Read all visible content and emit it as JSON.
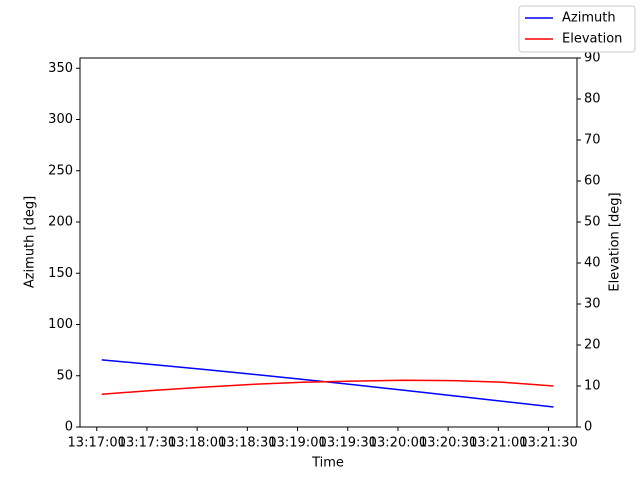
{
  "chart_data": {
    "type": "line",
    "x_label": "Time",
    "y_label": "Azimuth [deg]",
    "y2_label": "Elevation [deg]",
    "x": [
      "13:17:03",
      "13:17:33",
      "13:18:03",
      "13:18:33",
      "13:19:03",
      "13:19:33",
      "13:20:03",
      "13:20:33",
      "13:21:03",
      "13:21:33"
    ],
    "series": [
      {
        "name": "Azimuth",
        "color": "#0000ff",
        "values": [
          65.5,
          61,
          56.3,
          51.5,
          46.5,
          41.3,
          36,
          30.5,
          25,
          19.5
        ]
      },
      {
        "name": "Elevation",
        "color": "#ff0000",
        "axis": "y2",
        "values": [
          8.0,
          8.9,
          9.7,
          10.4,
          10.9,
          11.2,
          11.4,
          11.3,
          10.9,
          10.0
        ]
      }
    ],
    "xlim": [
      "13:16:50",
      "13:21:47"
    ],
    "xticks": [
      "13:17:00",
      "13:17:30",
      "13:18:00",
      "13:18:30",
      "13:19:00",
      "13:19:30",
      "13:20:00",
      "13:20:30",
      "13:21:00",
      "13:21:30"
    ],
    "ylim": [
      0,
      360
    ],
    "yticks": [
      0,
      50,
      100,
      150,
      200,
      250,
      300,
      350
    ],
    "y2lim": [
      0,
      90
    ],
    "y2ticks": [
      0,
      10,
      20,
      30,
      40,
      50,
      60,
      70,
      80,
      90
    ],
    "legend": "upper right"
  }
}
